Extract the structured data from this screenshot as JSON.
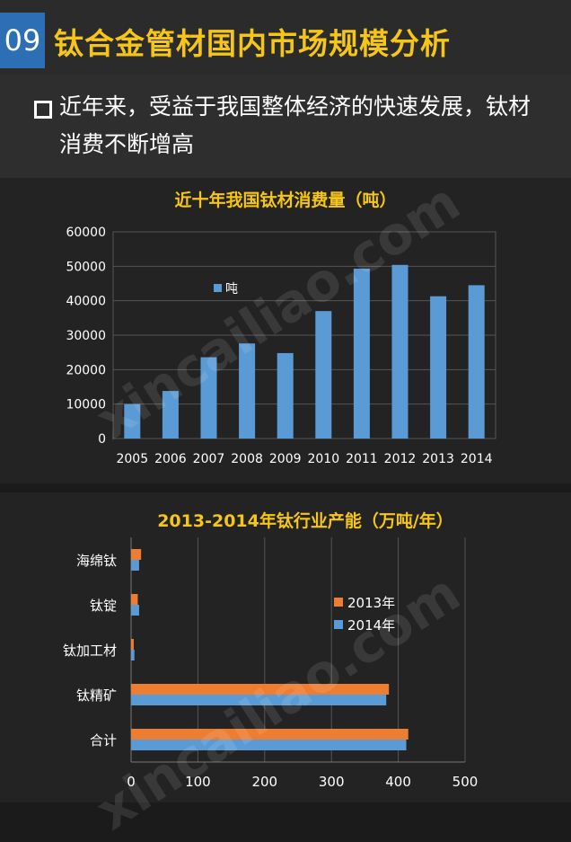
{
  "header": {
    "number": "09",
    "title": "钛合金管材国内市场规模分析"
  },
  "intro": {
    "text": "近年来，受益于我国整体经济的快速发展，钛材消费不断增高"
  },
  "watermark": "xincailiao.com",
  "colors": {
    "title_yellow": "#f5c518",
    "blue": "#5b9bd5",
    "orange": "#ed7d31",
    "badge_blue": "#2c6fb5"
  },
  "chart_data": [
    {
      "type": "bar",
      "title": "近十年我国钛材消费量（吨）",
      "categories": [
        "2005",
        "2006",
        "2007",
        "2008",
        "2009",
        "2010",
        "2011",
        "2012",
        "2013",
        "2014"
      ],
      "series": [
        {
          "name": "吨",
          "values": [
            10000,
            13800,
            23600,
            27600,
            24800,
            37000,
            49300,
            50400,
            41300,
            44500
          ]
        }
      ],
      "y_ticks": [
        "0",
        "10000",
        "20000",
        "30000",
        "40000",
        "50000",
        "60000"
      ],
      "ylim": [
        0,
        60000
      ],
      "grid": "horizontal",
      "legend": "upper-left"
    },
    {
      "type": "bar",
      "orientation": "horizontal",
      "title": "2013-2014年钛行业产能（万吨/年）",
      "categories": [
        "海绵钛",
        "钛锭",
        "钛加工材",
        "钛精矿",
        "合计"
      ],
      "series": [
        {
          "name": "2013年",
          "values": [
            15,
            10,
            4,
            386,
            415
          ]
        },
        {
          "name": "2014年",
          "values": [
            12,
            12,
            5,
            382,
            412
          ]
        }
      ],
      "x_ticks": [
        "0",
        "100",
        "200",
        "300",
        "400",
        "500"
      ],
      "xlim": [
        0,
        500
      ],
      "grid": "vertical",
      "legend": "right"
    }
  ]
}
